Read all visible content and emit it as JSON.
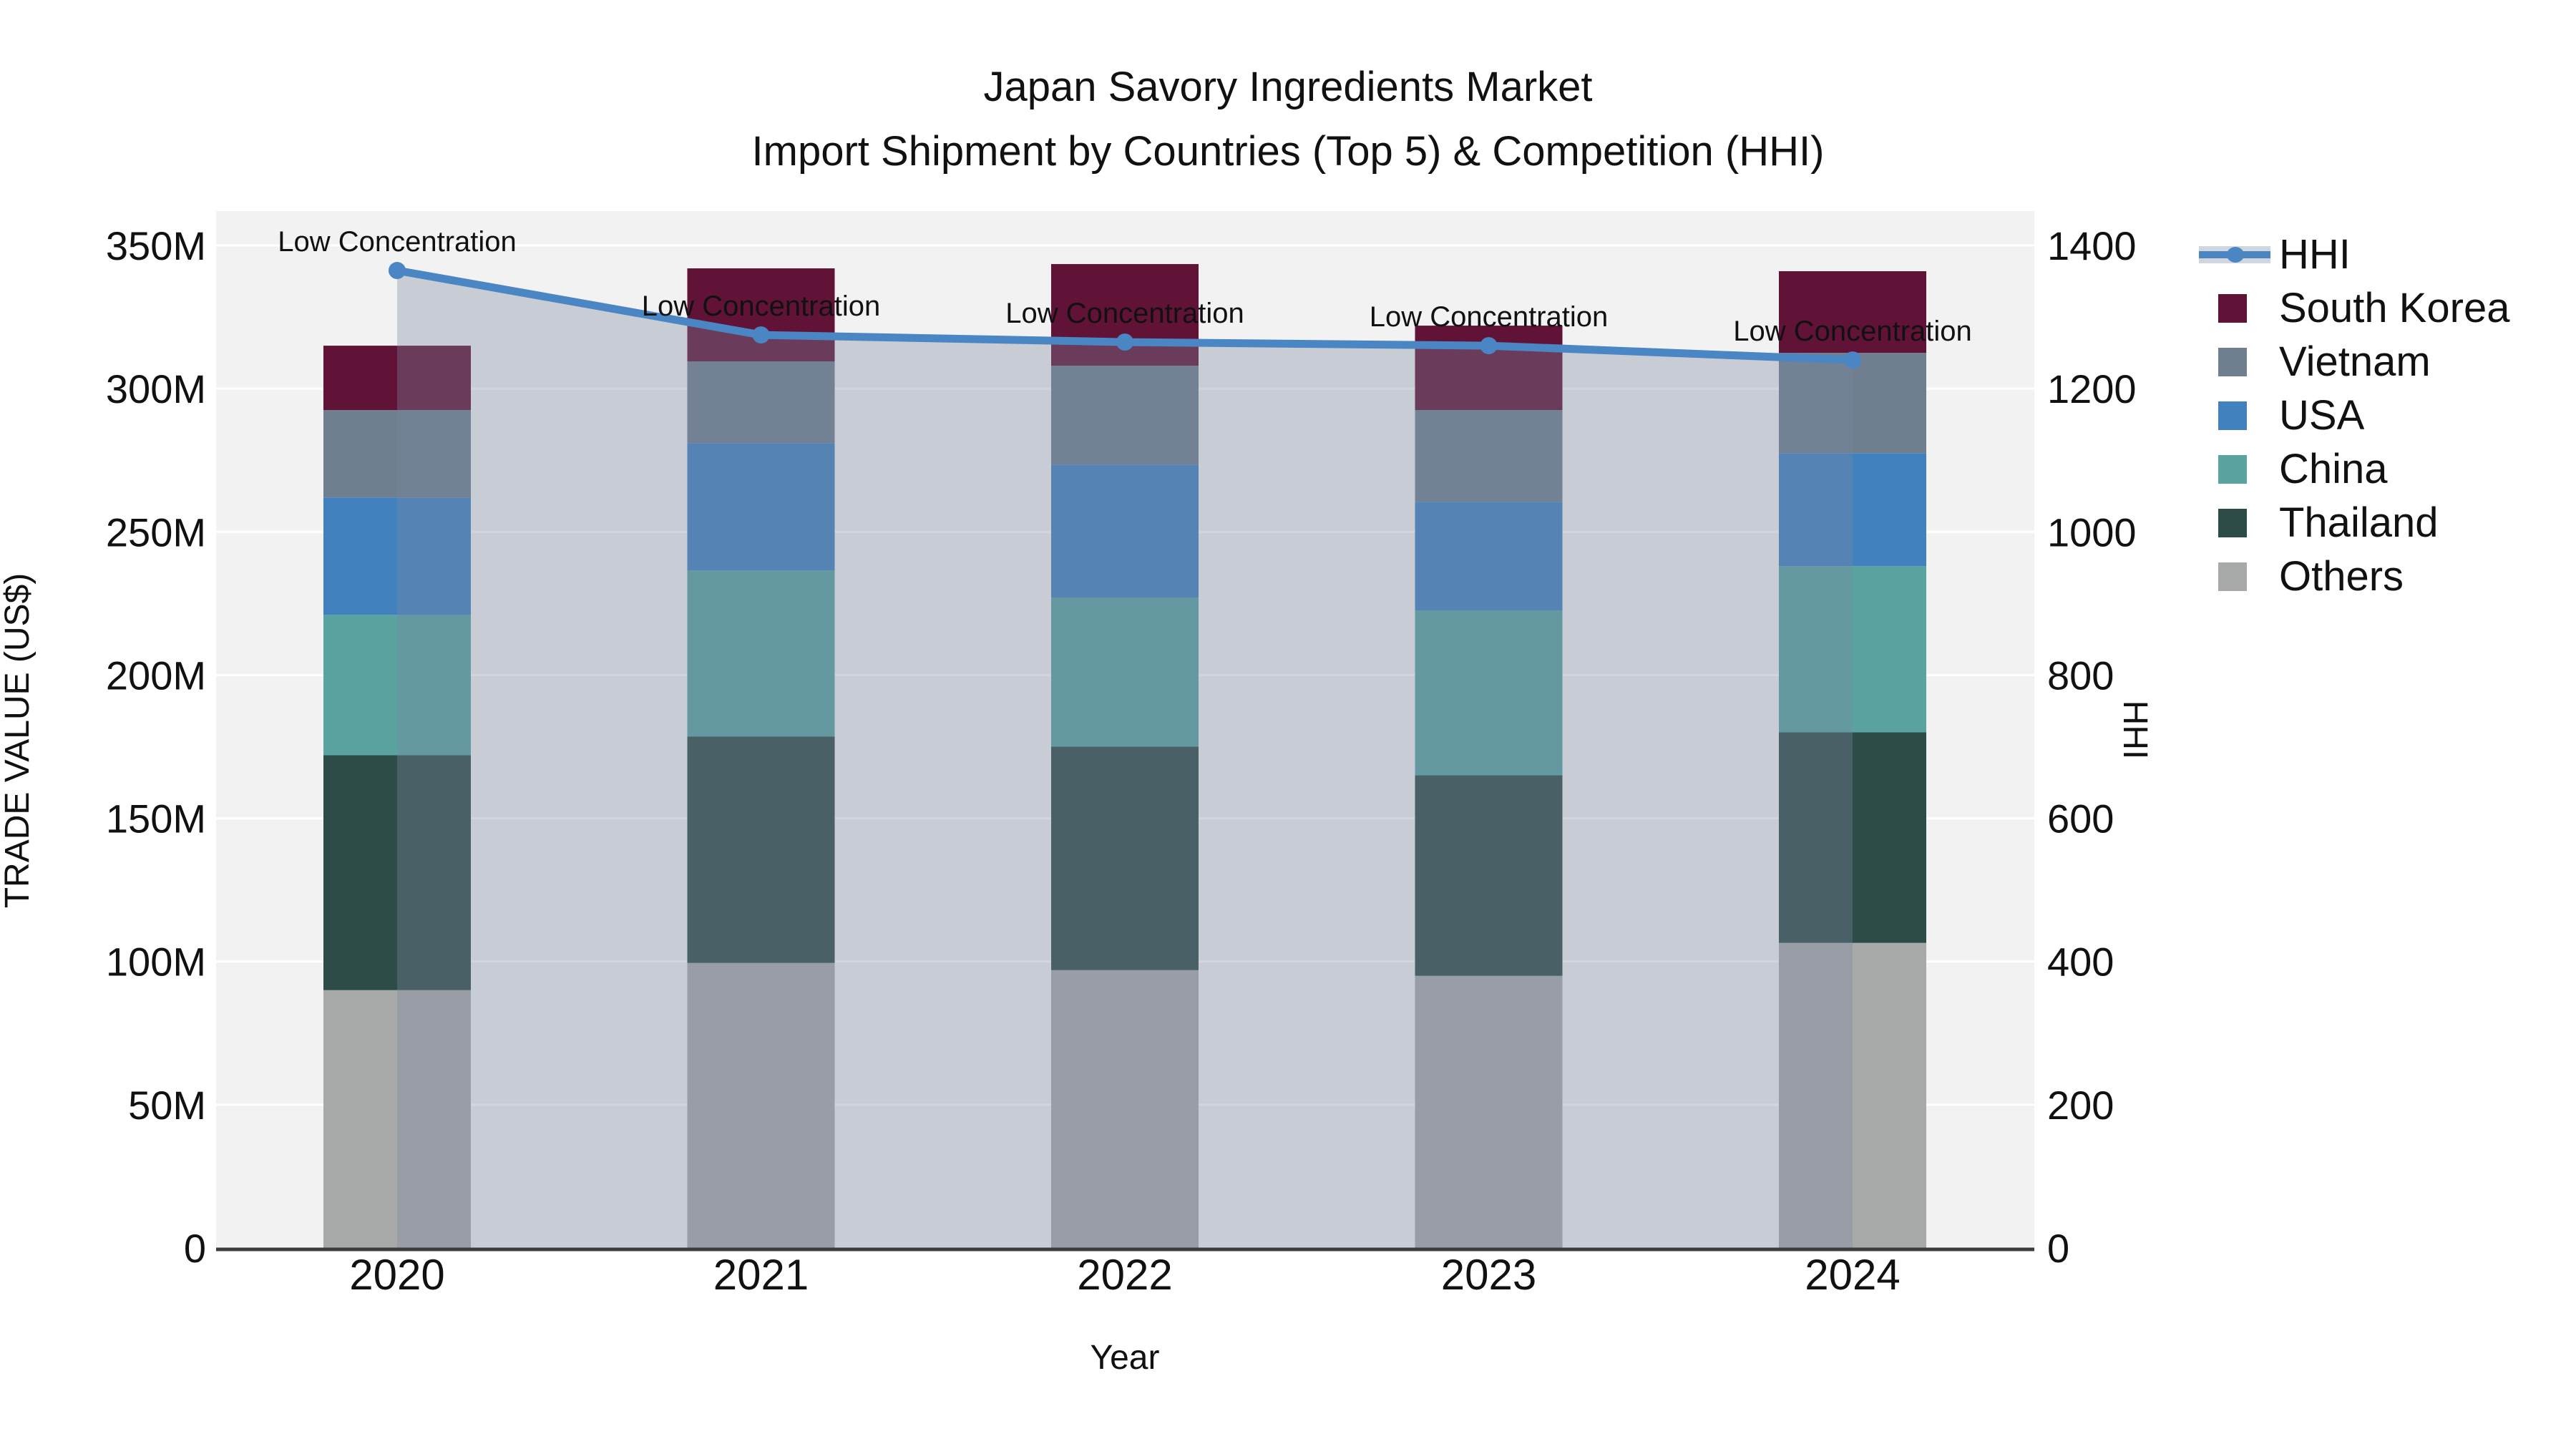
{
  "title": {
    "line1": "Japan Savory Ingredients Market",
    "line2": "Import Shipment by Countries (Top 5) & Competition (HHI)"
  },
  "colors": {
    "hhi_line": "#4a86c3",
    "hhi_area_fill": "rgba(123,136,161,0.35)",
    "hhi_area_legend_band": "#d0d5de",
    "south_korea": "#611337",
    "vietnam": "#6f7f8f",
    "usa": "#4181be",
    "china": "#5aa3a1",
    "thailand": "#2d4c47",
    "others": "#a8aaa9",
    "plot_bg": "#f2f2f2",
    "grid": "#ffffff",
    "axis_line": "#3d3d3d",
    "text": "#111111"
  },
  "chart_data": {
    "type": "bar",
    "subtype": "stacked-bars-with-line-and-area-overlay",
    "unit": "USD millions (left axis), HHI index (right axis)",
    "categories": [
      "2020",
      "2021",
      "2022",
      "2023",
      "2024"
    ],
    "series": [
      {
        "name": "South Korea",
        "color_key": "south_korea",
        "values": [
          22.5,
          32.5,
          35.5,
          29.5,
          28.5
        ]
      },
      {
        "name": "Vietnam",
        "color_key": "vietnam",
        "values": [
          30.5,
          28.5,
          34.5,
          32.0,
          35.0
        ]
      },
      {
        "name": "USA",
        "color_key": "usa",
        "values": [
          41.0,
          44.5,
          46.5,
          38.0,
          39.5
        ]
      },
      {
        "name": "China",
        "color_key": "china",
        "values": [
          49.0,
          58.0,
          52.0,
          57.5,
          58.0
        ]
      },
      {
        "name": "Thailand",
        "color_key": "thailand",
        "values": [
          82.0,
          79.0,
          78.0,
          70.0,
          73.5
        ]
      },
      {
        "name": "Others",
        "color_key": "others",
        "values": [
          90.0,
          99.5,
          97.0,
          95.0,
          106.5
        ]
      }
    ],
    "stack_order_bottom_to_top": [
      "Others",
      "Thailand",
      "China",
      "USA",
      "Vietnam",
      "South Korea"
    ],
    "bar_totals": [
      315.0,
      342.0,
      343.5,
      322.0,
      341.0
    ],
    "line_series": {
      "name": "HHI",
      "axis": "right",
      "values": [
        1365,
        1275,
        1265,
        1260,
        1240
      ]
    },
    "annotations": [
      {
        "x": "2020",
        "text": "Low Concentration"
      },
      {
        "x": "2021",
        "text": "Low Concentration"
      },
      {
        "x": "2022",
        "text": "Low Concentration"
      },
      {
        "x": "2023",
        "text": "Low Concentration"
      },
      {
        "x": "2024",
        "text": "Low Concentration"
      }
    ],
    "left_axis": {
      "title": "TRADE VALUE (US$)",
      "ticks": [
        "0",
        "50M",
        "100M",
        "150M",
        "200M",
        "250M",
        "300M",
        "350M"
      ],
      "range_millions": [
        0,
        350
      ]
    },
    "right_axis": {
      "title": "HHI",
      "ticks": [
        "0",
        "200",
        "400",
        "600",
        "800",
        "1000",
        "1200",
        "1400"
      ],
      "range": [
        0,
        1400
      ]
    },
    "x_axis": {
      "title": "Year"
    },
    "legend_order": [
      "HHI",
      "South Korea",
      "Vietnam",
      "USA",
      "China",
      "Thailand",
      "Others"
    ],
    "grid": true,
    "legend_position": "right"
  }
}
